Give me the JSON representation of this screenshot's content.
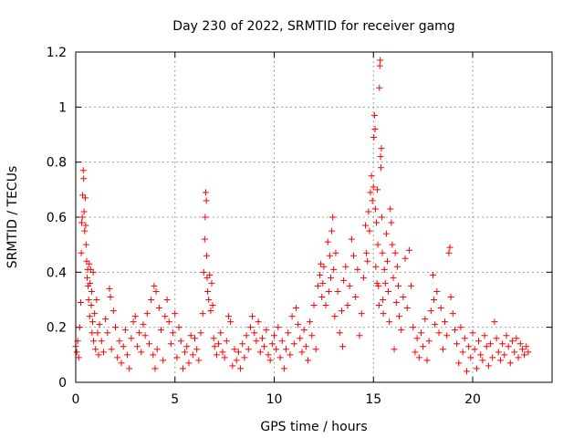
{
  "chart_data": {
    "type": "scatter",
    "title": "Day 230 of 2022, SRMTID for receiver gamg",
    "xlabel": "GPS time / hours",
    "ylabel": "SRMTID / TECUs",
    "xlim": [
      0,
      24
    ],
    "ylim": [
      0,
      1.2
    ],
    "xticks": [
      0,
      5,
      10,
      15,
      20
    ],
    "xtick_labels": [
      "0",
      "5",
      "10",
      "15",
      "20"
    ],
    "yticks": [
      0,
      0.2,
      0.4,
      0.6,
      0.8,
      1.0,
      1.2
    ],
    "ytick_labels": [
      "0",
      "0.2",
      "0.4",
      "0.6",
      "0.8",
      "1",
      "1.2"
    ],
    "grid": true,
    "marker": "+",
    "color": "#ff0000",
    "series": [
      {
        "name": "SRMTID",
        "points": [
          [
            0.0,
            0.13
          ],
          [
            0.05,
            0.11
          ],
          [
            0.1,
            0.15
          ],
          [
            0.15,
            0.09
          ],
          [
            0.2,
            0.2
          ],
          [
            0.25,
            0.29
          ],
          [
            0.28,
            0.47
          ],
          [
            0.3,
            0.58
          ],
          [
            0.33,
            0.6
          ],
          [
            0.35,
            0.68
          ],
          [
            0.38,
            0.77
          ],
          [
            0.4,
            0.74
          ],
          [
            0.42,
            0.62
          ],
          [
            0.45,
            0.55
          ],
          [
            0.48,
            0.67
          ],
          [
            0.5,
            0.57
          ],
          [
            0.52,
            0.5
          ],
          [
            0.55,
            0.44
          ],
          [
            0.58,
            0.38
          ],
          [
            0.6,
            0.41
          ],
          [
            0.62,
            0.35
          ],
          [
            0.65,
            0.3
          ],
          [
            0.68,
            0.43
          ],
          [
            0.7,
            0.24
          ],
          [
            0.72,
            0.36
          ],
          [
            0.75,
            0.41
          ],
          [
            0.78,
            0.28
          ],
          [
            0.8,
            0.33
          ],
          [
            0.82,
            0.18
          ],
          [
            0.85,
            0.22
          ],
          [
            0.88,
            0.4
          ],
          [
            0.9,
            0.15
          ],
          [
            0.95,
            0.25
          ],
          [
            1.0,
            0.12
          ],
          [
            1.05,
            0.3
          ],
          [
            1.1,
            0.18
          ],
          [
            1.15,
            0.1
          ],
          [
            1.2,
            0.21
          ],
          [
            1.3,
            0.15
          ],
          [
            1.4,
            0.11
          ],
          [
            1.5,
            0.23
          ],
          [
            1.6,
            0.18
          ],
          [
            1.7,
            0.34
          ],
          [
            1.75,
            0.31
          ],
          [
            1.8,
            0.12
          ],
          [
            1.9,
            0.26
          ],
          [
            2.0,
            0.2
          ],
          [
            2.1,
            0.09
          ],
          [
            2.2,
            0.15
          ],
          [
            2.3,
            0.07
          ],
          [
            2.4,
            0.13
          ],
          [
            2.5,
            0.19
          ],
          [
            2.6,
            0.1
          ],
          [
            2.7,
            0.05
          ],
          [
            2.8,
            0.16
          ],
          [
            2.9,
            0.22
          ],
          [
            3.0,
            0.24
          ],
          [
            3.1,
            0.13
          ],
          [
            3.2,
            0.18
          ],
          [
            3.3,
            0.11
          ],
          [
            3.4,
            0.21
          ],
          [
            3.5,
            0.17
          ],
          [
            3.6,
            0.25
          ],
          [
            3.7,
            0.14
          ],
          [
            3.8,
            0.3
          ],
          [
            3.9,
            0.1
          ],
          [
            3.95,
            0.35
          ],
          [
            4.0,
            0.05
          ],
          [
            4.05,
            0.33
          ],
          [
            4.1,
            0.12
          ],
          [
            4.2,
            0.27
          ],
          [
            4.3,
            0.19
          ],
          [
            4.4,
            0.08
          ],
          [
            4.5,
            0.24
          ],
          [
            4.6,
            0.3
          ],
          [
            4.7,
            0.22
          ],
          [
            4.8,
            0.14
          ],
          [
            4.9,
            0.18
          ],
          [
            5.0,
            0.25
          ],
          [
            5.1,
            0.09
          ],
          [
            5.2,
            0.2
          ],
          [
            5.3,
            0.15
          ],
          [
            5.4,
            0.05
          ],
          [
            5.5,
            0.11
          ],
          [
            5.6,
            0.13
          ],
          [
            5.7,
            0.07
          ],
          [
            5.8,
            0.17
          ],
          [
            5.9,
            0.1
          ],
          [
            6.0,
            0.16
          ],
          [
            6.1,
            0.12
          ],
          [
            6.2,
            0.08
          ],
          [
            6.3,
            0.18
          ],
          [
            6.4,
            0.25
          ],
          [
            6.45,
            0.4
          ],
          [
            6.5,
            0.52
          ],
          [
            6.52,
            0.6
          ],
          [
            6.55,
            0.69
          ],
          [
            6.58,
            0.66
          ],
          [
            6.6,
            0.46
          ],
          [
            6.62,
            0.38
          ],
          [
            6.65,
            0.33
          ],
          [
            6.7,
            0.3
          ],
          [
            6.75,
            0.39
          ],
          [
            6.8,
            0.26
          ],
          [
            6.85,
            0.36
          ],
          [
            6.9,
            0.28
          ],
          [
            6.95,
            0.16
          ],
          [
            7.0,
            0.13
          ],
          [
            7.1,
            0.1
          ],
          [
            7.2,
            0.14
          ],
          [
            7.3,
            0.18
          ],
          [
            7.4,
            0.11
          ],
          [
            7.5,
            0.09
          ],
          [
            7.6,
            0.15
          ],
          [
            7.7,
            0.24
          ],
          [
            7.8,
            0.22
          ],
          [
            7.9,
            0.06
          ],
          [
            8.0,
            0.12
          ],
          [
            8.1,
            0.08
          ],
          [
            8.2,
            0.11
          ],
          [
            8.3,
            0.05
          ],
          [
            8.4,
            0.14
          ],
          [
            8.5,
            0.09
          ],
          [
            8.6,
            0.17
          ],
          [
            8.7,
            0.12
          ],
          [
            8.8,
            0.2
          ],
          [
            8.9,
            0.24
          ],
          [
            9.0,
            0.18
          ],
          [
            9.1,
            0.15
          ],
          [
            9.2,
            0.22
          ],
          [
            9.3,
            0.11
          ],
          [
            9.4,
            0.16
          ],
          [
            9.5,
            0.13
          ],
          [
            9.6,
            0.19
          ],
          [
            9.7,
            0.1
          ],
          [
            9.8,
            0.08
          ],
          [
            9.9,
            0.14
          ],
          [
            10.0,
            0.17
          ],
          [
            10.1,
            0.12
          ],
          [
            10.2,
            0.2
          ],
          [
            10.3,
            0.09
          ],
          [
            10.4,
            0.15
          ],
          [
            10.5,
            0.05
          ],
          [
            10.6,
            0.12
          ],
          [
            10.7,
            0.18
          ],
          [
            10.8,
            0.1
          ],
          [
            10.9,
            0.24
          ],
          [
            11.0,
            0.14
          ],
          [
            11.1,
            0.27
          ],
          [
            11.2,
            0.21
          ],
          [
            11.3,
            0.16
          ],
          [
            11.4,
            0.11
          ],
          [
            11.5,
            0.19
          ],
          [
            11.6,
            0.13
          ],
          [
            11.7,
            0.08
          ],
          [
            11.8,
            0.22
          ],
          [
            11.9,
            0.17
          ],
          [
            12.0,
            0.28
          ],
          [
            12.1,
            0.12
          ],
          [
            12.2,
            0.35
          ],
          [
            12.3,
            0.39
          ],
          [
            12.35,
            0.43
          ],
          [
            12.4,
            0.31
          ],
          [
            12.45,
            0.36
          ],
          [
            12.5,
            0.42
          ],
          [
            12.6,
            0.28
          ],
          [
            12.7,
            0.51
          ],
          [
            12.75,
            0.33
          ],
          [
            12.8,
            0.46
          ],
          [
            12.85,
            0.38
          ],
          [
            12.9,
            0.55
          ],
          [
            12.95,
            0.6
          ],
          [
            13.0,
            0.41
          ],
          [
            13.05,
            0.24
          ],
          [
            13.1,
            0.47
          ],
          [
            13.2,
            0.33
          ],
          [
            13.3,
            0.18
          ],
          [
            13.4,
            0.26
          ],
          [
            13.45,
            0.13
          ],
          [
            13.5,
            0.37
          ],
          [
            13.6,
            0.42
          ],
          [
            13.7,
            0.28
          ],
          [
            13.8,
            0.35
          ],
          [
            13.9,
            0.52
          ],
          [
            14.0,
            0.46
          ],
          [
            14.1,
            0.31
          ],
          [
            14.2,
            0.41
          ],
          [
            14.3,
            0.17
          ],
          [
            14.4,
            0.25
          ],
          [
            14.5,
            0.38
          ],
          [
            14.6,
            0.57
          ],
          [
            14.65,
            0.47
          ],
          [
            14.7,
            0.44
          ],
          [
            14.75,
            0.62
          ],
          [
            14.8,
            0.55
          ],
          [
            14.85,
            0.69
          ],
          [
            14.9,
            0.75
          ],
          [
            14.95,
            0.66
          ],
          [
            15.0,
            0.71
          ],
          [
            15.02,
            0.89
          ],
          [
            15.05,
            0.97
          ],
          [
            15.08,
            0.92
          ],
          [
            15.1,
            0.63
          ],
          [
            15.12,
            0.42
          ],
          [
            15.15,
            0.58
          ],
          [
            15.18,
            0.36
          ],
          [
            15.2,
            0.7
          ],
          [
            15.22,
            0.5
          ],
          [
            15.25,
            0.35
          ],
          [
            15.28,
            0.28
          ],
          [
            15.3,
            1.07
          ],
          [
            15.32,
            1.15
          ],
          [
            15.34,
            1.17
          ],
          [
            15.36,
            0.82
          ],
          [
            15.38,
            0.78
          ],
          [
            15.4,
            0.85
          ],
          [
            15.42,
            0.6
          ],
          [
            15.45,
            0.47
          ],
          [
            15.48,
            0.3
          ],
          [
            15.5,
            0.25
          ],
          [
            15.55,
            0.41
          ],
          [
            15.6,
            0.36
          ],
          [
            15.65,
            0.54
          ],
          [
            15.7,
            0.44
          ],
          [
            15.75,
            0.33
          ],
          [
            15.8,
            0.22
          ],
          [
            15.85,
            0.63
          ],
          [
            15.9,
            0.58
          ],
          [
            15.95,
            0.5
          ],
          [
            16.0,
            0.38
          ],
          [
            16.05,
            0.12
          ],
          [
            16.1,
            0.47
          ],
          [
            16.15,
            0.29
          ],
          [
            16.2,
            0.42
          ],
          [
            16.25,
            0.35
          ],
          [
            16.3,
            0.24
          ],
          [
            16.4,
            0.19
          ],
          [
            16.5,
            0.31
          ],
          [
            16.6,
            0.45
          ],
          [
            16.7,
            0.27
          ],
          [
            16.8,
            0.48
          ],
          [
            16.9,
            0.35
          ],
          [
            17.0,
            0.2
          ],
          [
            17.1,
            0.11
          ],
          [
            17.2,
            0.16
          ],
          [
            17.3,
            0.09
          ],
          [
            17.4,
            0.18
          ],
          [
            17.5,
            0.13
          ],
          [
            17.6,
            0.23
          ],
          [
            17.7,
            0.08
          ],
          [
            17.8,
            0.15
          ],
          [
            17.9,
            0.26
          ],
          [
            18.0,
            0.39
          ],
          [
            18.05,
            0.3
          ],
          [
            18.1,
            0.21
          ],
          [
            18.2,
            0.33
          ],
          [
            18.3,
            0.18
          ],
          [
            18.4,
            0.27
          ],
          [
            18.5,
            0.12
          ],
          [
            18.6,
            0.22
          ],
          [
            18.7,
            0.17
          ],
          [
            18.8,
            0.47
          ],
          [
            18.85,
            0.49
          ],
          [
            18.9,
            0.31
          ],
          [
            19.0,
            0.25
          ],
          [
            19.1,
            0.19
          ],
          [
            19.2,
            0.14
          ],
          [
            19.3,
            0.07
          ],
          [
            19.4,
            0.2
          ],
          [
            19.5,
            0.11
          ],
          [
            19.6,
            0.16
          ],
          [
            19.7,
            0.04
          ],
          [
            19.8,
            0.13
          ],
          [
            19.9,
            0.09
          ],
          [
            20.0,
            0.18
          ],
          [
            20.1,
            0.12
          ],
          [
            20.2,
            0.05
          ],
          [
            20.3,
            0.15
          ],
          [
            20.4,
            0.1
          ],
          [
            20.5,
            0.08
          ],
          [
            20.6,
            0.17
          ],
          [
            20.7,
            0.13
          ],
          [
            20.8,
            0.06
          ],
          [
            20.9,
            0.14
          ],
          [
            21.0,
            0.09
          ],
          [
            21.1,
            0.22
          ],
          [
            21.2,
            0.16
          ],
          [
            21.3,
            0.11
          ],
          [
            21.4,
            0.08
          ],
          [
            21.5,
            0.14
          ],
          [
            21.6,
            0.1
          ],
          [
            21.7,
            0.17
          ],
          [
            21.8,
            0.13
          ],
          [
            21.9,
            0.07
          ],
          [
            22.0,
            0.15
          ],
          [
            22.1,
            0.11
          ],
          [
            22.2,
            0.16
          ],
          [
            22.3,
            0.09
          ],
          [
            22.4,
            0.14
          ],
          [
            22.5,
            0.12
          ],
          [
            22.6,
            0.1
          ],
          [
            22.7,
            0.13
          ],
          [
            22.8,
            0.11
          ]
        ]
      }
    ]
  }
}
